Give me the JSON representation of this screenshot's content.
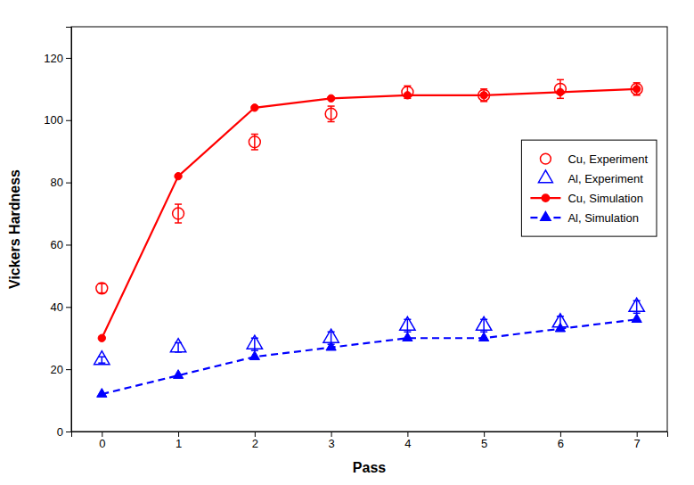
{
  "chart_data": {
    "type": "line",
    "xlabel": "Pass",
    "ylabel": "Vickers Hardness",
    "x": [
      0,
      1,
      2,
      3,
      4,
      5,
      6,
      7
    ],
    "xlim": [
      -0.4,
      7.4
    ],
    "ylim": [
      0,
      130
    ],
    "xticks": [
      0,
      1,
      2,
      3,
      4,
      5,
      6,
      7
    ],
    "yticks": [
      0,
      20,
      40,
      60,
      80,
      100,
      120
    ],
    "grid": false,
    "legend": "right",
    "series": [
      {
        "name": "Cu, Experiment",
        "type": "scatter",
        "color": "#ff0000",
        "marker": "circle-open",
        "line_style": "none",
        "values": [
          46,
          70,
          93,
          102,
          109,
          108,
          110,
          110
        ],
        "errors": [
          1.5,
          3,
          2.5,
          2.5,
          2,
          2,
          3,
          2
        ]
      },
      {
        "name": "Al, Experiment",
        "type": "scatter",
        "color": "#0000ff",
        "marker": "triangle-open",
        "line_style": "none",
        "values": [
          23,
          27,
          28,
          30,
          34,
          34,
          35,
          40
        ],
        "errors": [
          1,
          1.5,
          2,
          2,
          2,
          2,
          2,
          2
        ]
      },
      {
        "name": "Cu, Simulation",
        "type": "line",
        "color": "#ff0000",
        "marker": "circle",
        "line_style": "solid",
        "values": [
          30,
          82,
          104,
          107,
          108,
          108,
          109,
          110
        ]
      },
      {
        "name": "Al, Simulation",
        "type": "line",
        "color": "#0000ff",
        "marker": "triangle",
        "line_style": "dashed",
        "values": [
          12,
          18,
          24,
          27,
          30,
          30,
          33,
          36
        ]
      }
    ]
  }
}
